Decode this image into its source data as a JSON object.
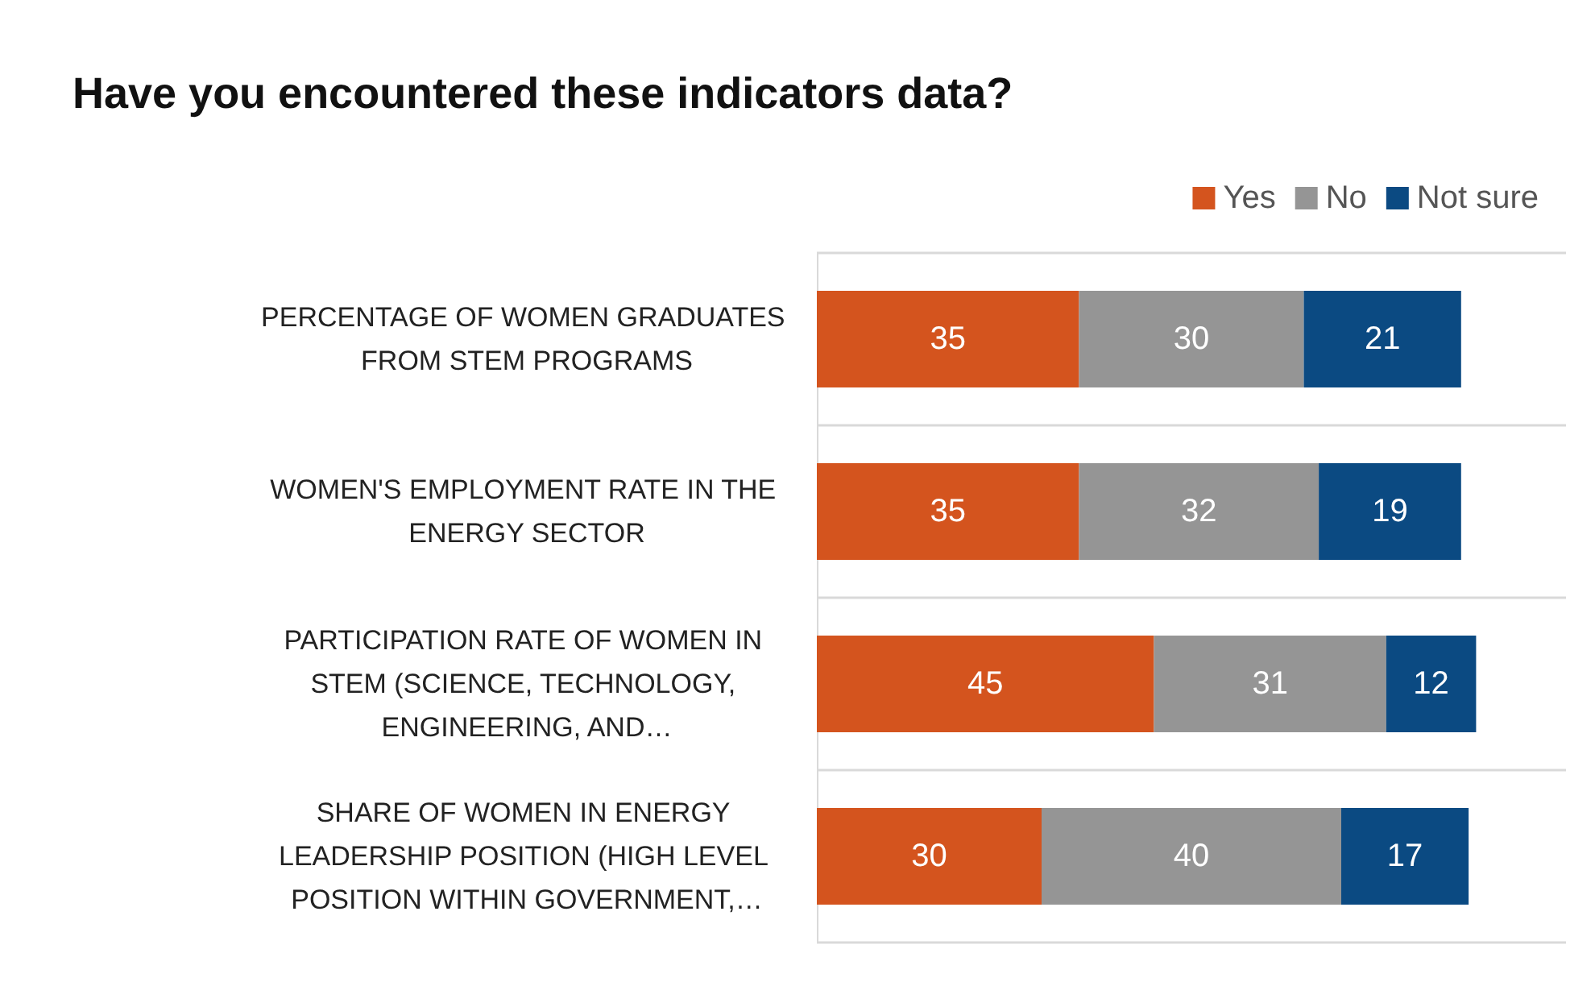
{
  "chart_data": {
    "type": "bar",
    "orientation": "horizontal",
    "stacked": true,
    "title": "Have you encountered these indicators data?",
    "categories": [
      "PERCENTAGE OF WOMEN GRADUATES FROM STEM PROGRAMS",
      "WOMEN'S EMPLOYMENT RATE IN THE ENERGY SECTOR",
      "PARTICIPATION RATE OF WOMEN IN STEM (SCIENCE, TECHNOLOGY, ENGINEERING, AND…",
      "SHARE OF WOMEN IN ENERGY LEADERSHIP POSITION (HIGH LEVEL POSITION WITHIN GOVERNMENT,…"
    ],
    "series": [
      {
        "name": "Yes",
        "color": "#d4541e",
        "values": [
          35,
          35,
          45,
          30
        ]
      },
      {
        "name": "No",
        "color": "#959595",
        "values": [
          30,
          32,
          31,
          40
        ]
      },
      {
        "name": "Not sure",
        "color": "#0b4a82",
        "values": [
          21,
          19,
          12,
          17
        ]
      }
    ],
    "xlim": [
      0,
      100
    ],
    "data_labels": true,
    "grid": "y",
    "legend": "top right",
    "tick_labels": "y"
  }
}
